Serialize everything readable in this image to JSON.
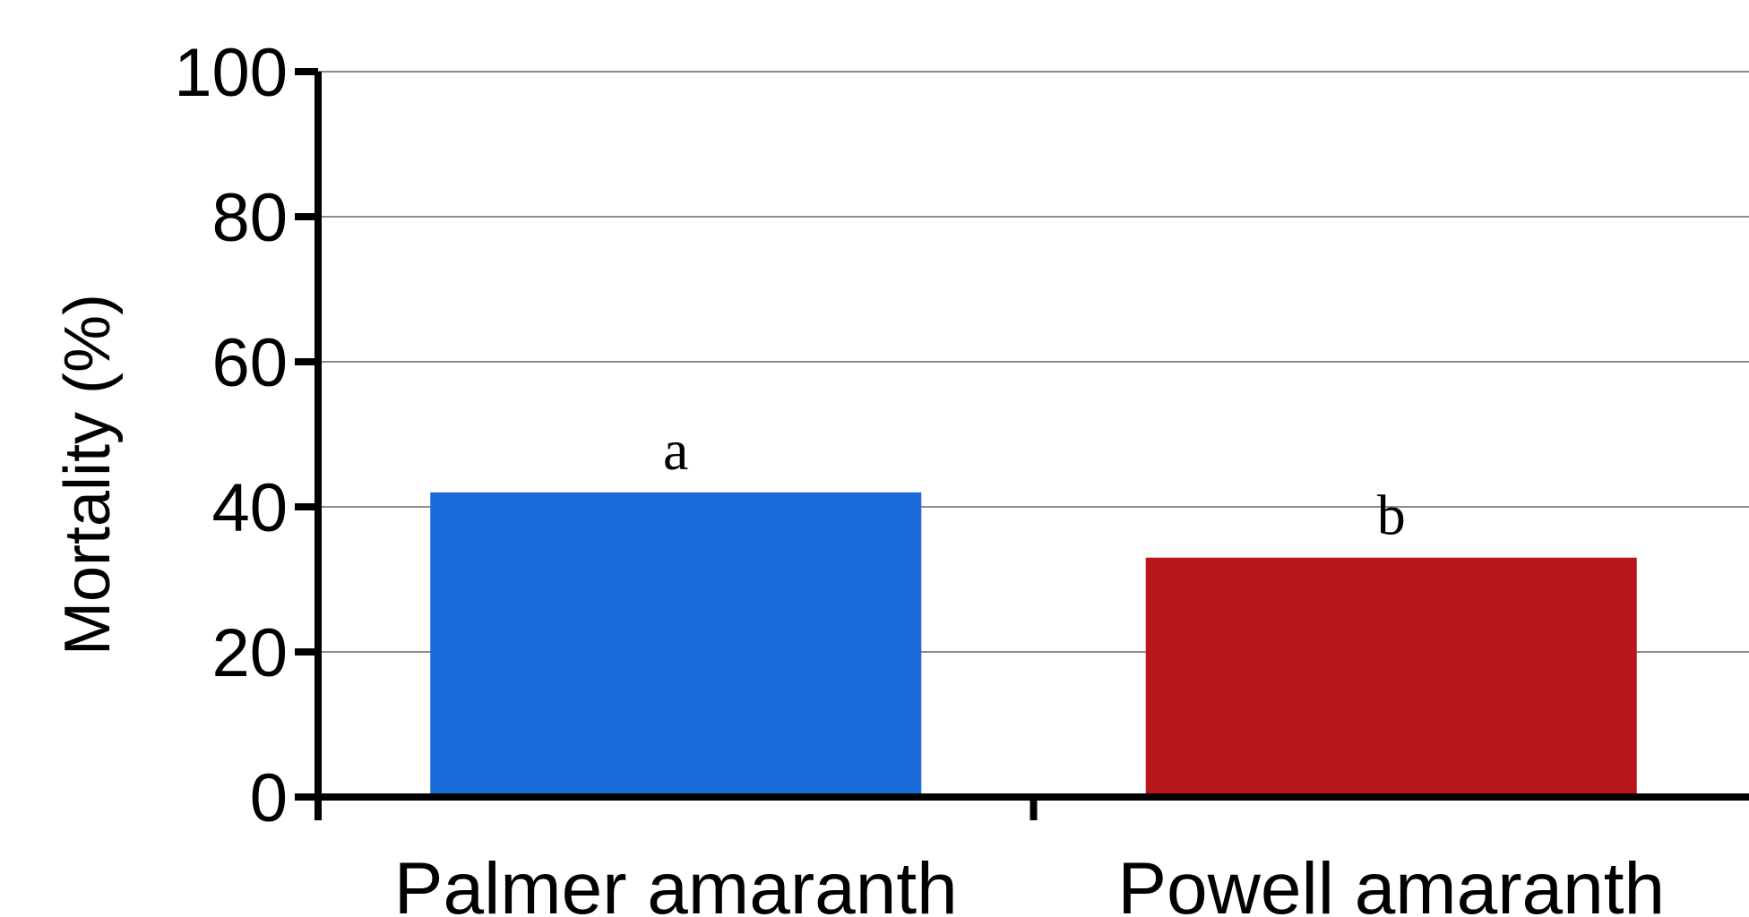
{
  "chart_data": {
    "type": "bar",
    "ylabel": "Mortality (%)",
    "xlabel": "",
    "ylim": [
      0,
      100
    ],
    "yticks": [
      0,
      20,
      40,
      60,
      80,
      100
    ],
    "grid": true,
    "categories": [
      "Palmer amaranth",
      "Powell amaranth"
    ],
    "values": [
      42,
      33
    ],
    "data_labels": [
      "a",
      "b"
    ],
    "colors": [
      "#1a6ad9",
      "#b9161c"
    ]
  }
}
